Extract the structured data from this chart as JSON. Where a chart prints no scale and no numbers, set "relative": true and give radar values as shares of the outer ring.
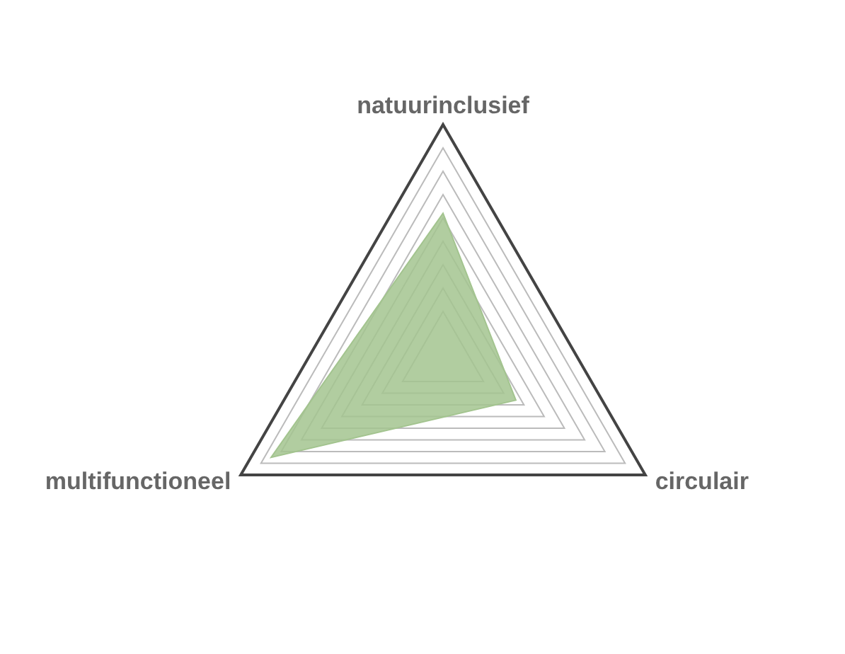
{
  "chart_data": {
    "type": "radar",
    "relative": true,
    "categories": [
      "natuurinclusief",
      "circulair",
      "multifunctioneel"
    ],
    "series": [
      {
        "color": "#a3c48f",
        "values": [
          0.62,
          0.36,
          0.85
        ]
      }
    ],
    "grid": true,
    "legend": false
  }
}
